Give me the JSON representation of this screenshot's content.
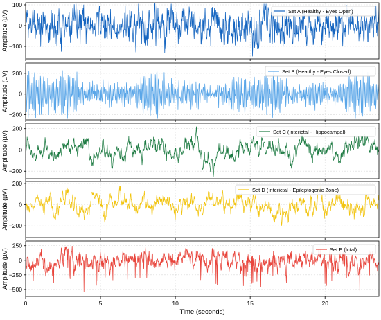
{
  "chart_data": {
    "type": "line",
    "xlabel": "Time (seconds)",
    "xlim": [
      0,
      23.6
    ],
    "xticks": [
      "0",
      "5",
      "10",
      "15",
      "20"
    ],
    "xtick_values": [
      0,
      5,
      10,
      15,
      20
    ],
    "grid": true,
    "legend_placement": "top-right",
    "panels": [
      {
        "series_name": "Set A (Healthy - Eyes Open)",
        "color": "#1565c0",
        "ylabel": "Amplitude (µV)",
        "ylim": [
          -160,
          110
        ],
        "yticks": [
          "100",
          "0",
          "−100"
        ],
        "ytick_values": [
          100,
          0,
          -100
        ],
        "baseline": 0,
        "amplitude": 45,
        "extreme_low": -150,
        "extreme_high": 105,
        "character": "noisy"
      },
      {
        "series_name": "Set B (Healthy - Eyes Closed)",
        "color": "#5aa6e8",
        "ylabel": "Amplitude (µV)",
        "ylim": [
          -250,
          300
        ],
        "yticks": [
          "200",
          "0",
          "−200"
        ],
        "ytick_values": [
          200,
          0,
          -200
        ],
        "baseline": 0,
        "amplitude": 85,
        "extreme_low": -240,
        "extreme_high": 290,
        "character": "alpha"
      },
      {
        "series_name": "Set C (Interictal - Hippocampal)",
        "color": "#1e7b43",
        "ylabel": "Amplitude (µV)",
        "ylim": [
          -270,
          250
        ],
        "yticks": [
          "200",
          "0",
          "−200"
        ],
        "ytick_values": [
          200,
          0,
          -200
        ],
        "baseline": 0,
        "amplitude": 65,
        "extreme_low": -250,
        "extreme_high": 230,
        "character": "slow"
      },
      {
        "series_name": "Set D (Interictal - Epileptogenic Zone)",
        "color": "#f2c40f",
        "ylabel": "Amplitude (µV)",
        "ylim": [
          -310,
          220
        ],
        "yticks": [
          "200",
          "0",
          "−200"
        ],
        "ytick_values": [
          200,
          0,
          -200
        ],
        "baseline": 0,
        "amplitude": 60,
        "extreme_low": -300,
        "extreme_high": 210,
        "character": "slow"
      },
      {
        "series_name": "Set E (Ictal)",
        "color": "#e8453c",
        "ylabel": "Amplitude (µV)",
        "ylim": [
          -620,
          330
        ],
        "yticks": [
          "250",
          "0",
          "−250",
          "−500"
        ],
        "ytick_values": [
          250,
          0,
          -250,
          -500
        ],
        "baseline": -20,
        "amplitude": 110,
        "extreme_low": -600,
        "extreme_high": 260,
        "character": "spiky"
      }
    ]
  }
}
